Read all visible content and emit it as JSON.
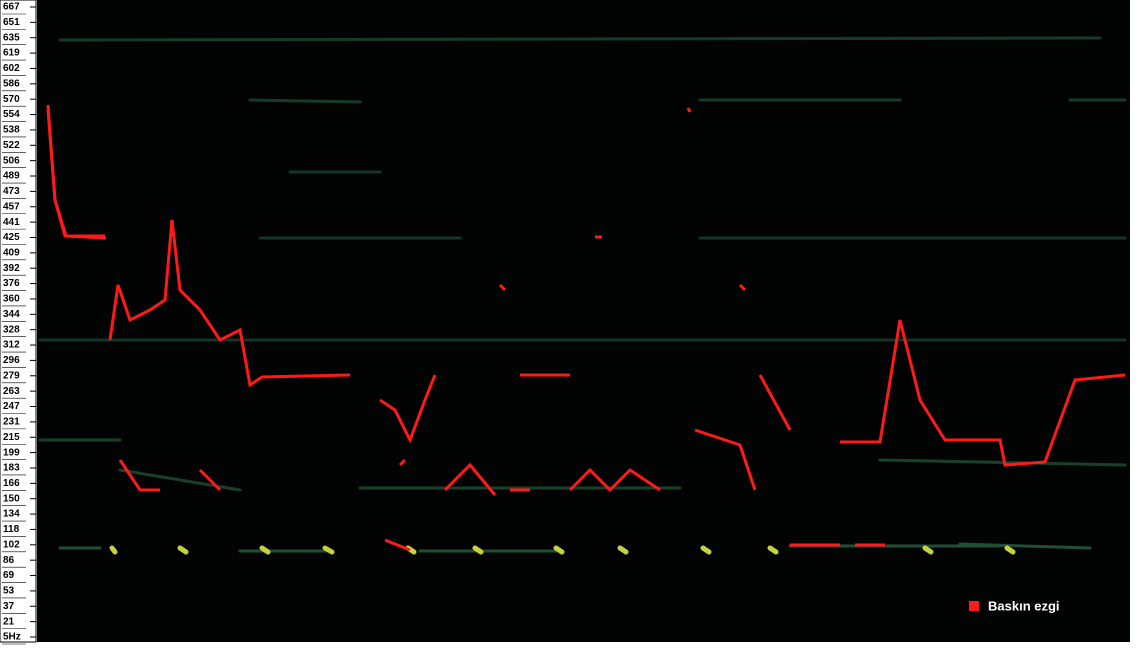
{
  "axis": {
    "labels": [
      "667",
      "651",
      "635",
      "619",
      "602",
      "586",
      "570",
      "554",
      "538",
      "522",
      "506",
      "489",
      "473",
      "457",
      "441",
      "425",
      "409",
      "392",
      "376",
      "360",
      "344",
      "328",
      "312",
      "296",
      "279",
      "263",
      "247",
      "231",
      "215",
      "199",
      "183",
      "166",
      "150",
      "134",
      "118",
      "102",
      "86",
      "69",
      "53",
      "37",
      "21",
      "5Hz"
    ]
  },
  "legend": {
    "label": "Baskın ezgi"
  }
}
